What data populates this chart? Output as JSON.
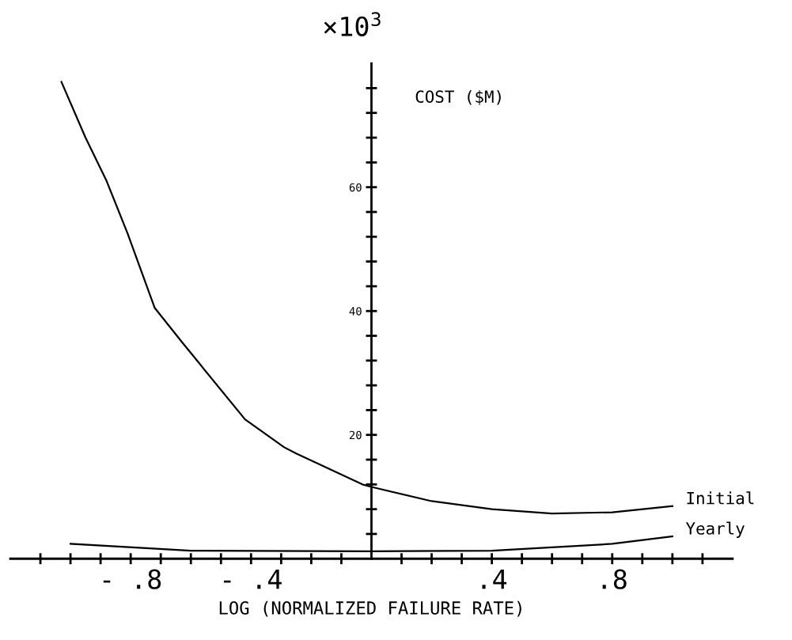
{
  "chart_data": {
    "type": "line",
    "xlabel": "LOG (NORMALIZED FAILURE RATE)",
    "ylabel": "COST ($M)",
    "annotations": [
      "×10$^{3}$"
    ],
    "series": [
      {
        "name": "Initial",
        "color": "#000000",
        "x": [
          -1.03,
          -0.95,
          -0.88,
          -0.81,
          -0.72,
          -0.63,
          -0.42,
          -0.29,
          -0.25,
          -0.03,
          0,
          0.2,
          0.4,
          0.6,
          0.8,
          1.0
        ],
        "values": [
          77,
          68,
          61,
          52.5,
          40.5,
          35,
          22.5,
          18,
          17,
          12,
          11.6,
          9.3,
          8,
          7.3,
          7.5,
          8.5
        ]
      },
      {
        "name": "Yearly",
        "color": "#000000",
        "x": [
          -1.0,
          -0.6,
          0,
          0.4,
          0.8,
          1.0
        ],
        "values": [
          2.4,
          1.3,
          1.2,
          1.3,
          2.4,
          3.6
        ]
      }
    ],
    "xlim": [
      -1.2,
      1.2
    ],
    "xticks": [
      {
        "value": -1.1,
        "label": null
      },
      {
        "value": -1.0,
        "label": null
      },
      {
        "value": -0.9,
        "label": null
      },
      {
        "value": -0.8,
        "label": "- .8"
      },
      {
        "value": -0.7,
        "label": null
      },
      {
        "value": -0.6,
        "label": null
      },
      {
        "value": -0.5,
        "label": null
      },
      {
        "value": -0.4,
        "label": "- .4"
      },
      {
        "value": -0.3,
        "label": null
      },
      {
        "value": -0.2,
        "label": null
      },
      {
        "value": -0.1,
        "label": null
      },
      {
        "value": 0.1,
        "label": null
      },
      {
        "value": 0.2,
        "label": null
      },
      {
        "value": 0.3,
        "label": null
      },
      {
        "value": 0.4,
        "label": ".4"
      },
      {
        "value": 0.5,
        "label": null
      },
      {
        "value": 0.6,
        "label": null
      },
      {
        "value": 0.7,
        "label": null
      },
      {
        "value": 0.8,
        "label": ".8"
      },
      {
        "value": 0.9,
        "label": null
      },
      {
        "value": 1.0,
        "label": null
      },
      {
        "value": 1.1,
        "label": null
      }
    ],
    "ylim": [
      0,
      80
    ],
    "yticks": [
      {
        "value": 4,
        "label": null
      },
      {
        "value": 8,
        "label": null
      },
      {
        "value": 12,
        "label": null
      },
      {
        "value": 16,
        "label": null
      },
      20,
      {
        "value": 24,
        "label": null
      },
      {
        "value": 28,
        "label": null
      },
      {
        "value": 32,
        "label": null
      },
      {
        "value": 36,
        "label": null
      },
      40,
      {
        "value": 44,
        "label": null
      },
      {
        "value": 48,
        "label": null
      },
      {
        "value": 52,
        "label": null
      },
      {
        "value": 56,
        "label": null
      },
      60,
      {
        "value": 64,
        "label": null
      },
      {
        "value": 68,
        "label": null
      },
      {
        "value": 72,
        "label": null
      },
      {
        "value": 76,
        "label": null
      }
    ],
    "grid": false,
    "legend": false,
    "marker": "none",
    "line_style": "solid"
  }
}
